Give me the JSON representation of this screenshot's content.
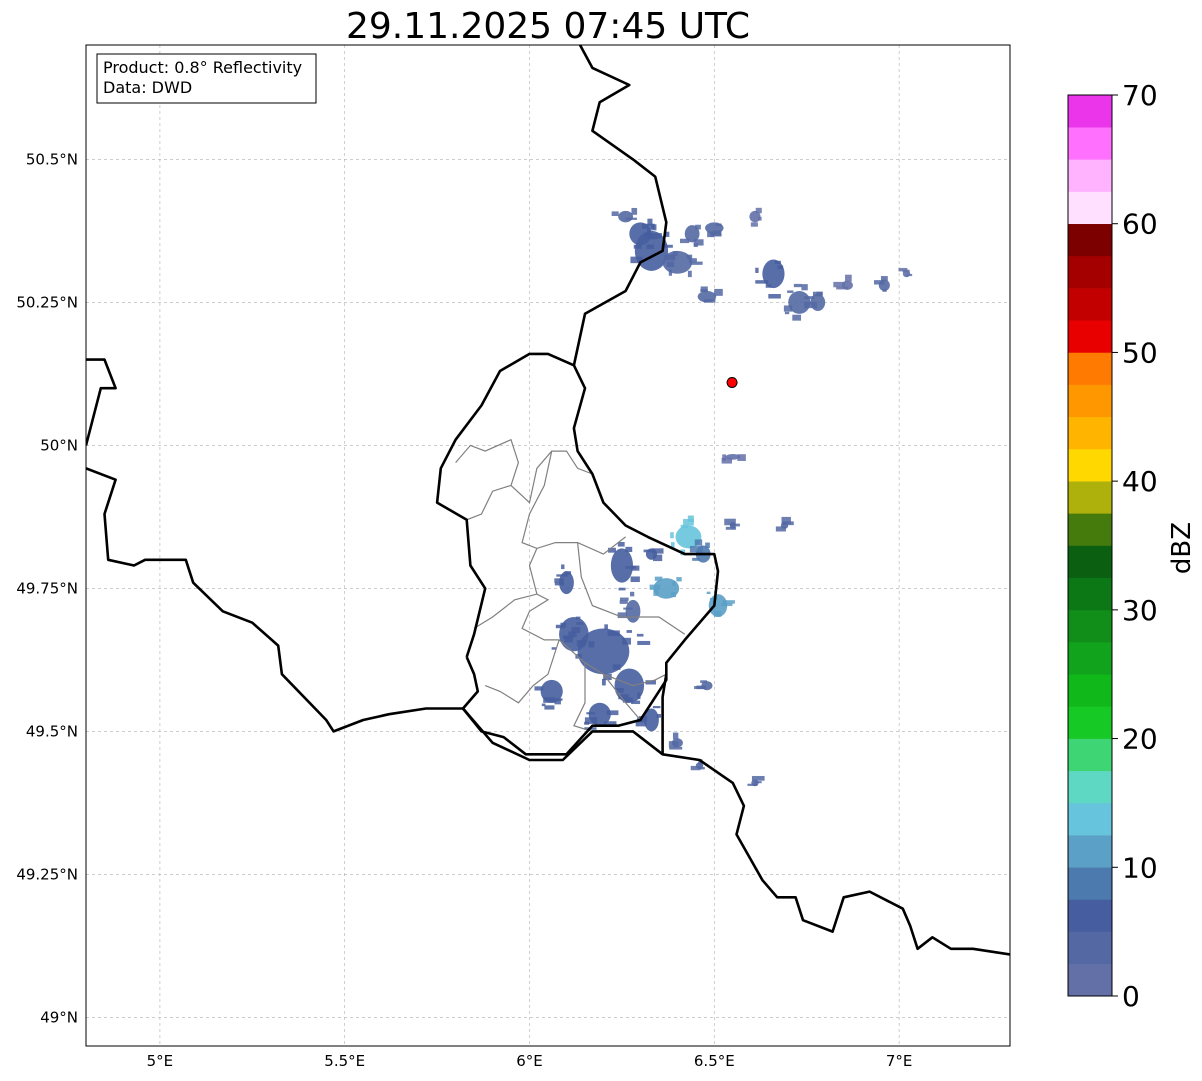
{
  "title": "29.11.2025 07:45 UTC",
  "info_box": {
    "product_line": "Product: 0.8° Reflectivity",
    "data_line": "Data: DWD"
  },
  "map": {
    "lon_range": [
      4.8,
      7.3
    ],
    "lat_range": [
      48.95,
      50.7
    ],
    "x_ticks": [
      {
        "value": 5.0,
        "label": "5°E"
      },
      {
        "value": 5.5,
        "label": "5.5°E"
      },
      {
        "value": 6.0,
        "label": "6°E"
      },
      {
        "value": 6.5,
        "label": "6.5°E"
      },
      {
        "value": 7.0,
        "label": "7°E"
      }
    ],
    "y_ticks": [
      {
        "value": 49.0,
        "label": "49°N"
      },
      {
        "value": 49.25,
        "label": "49.25°N"
      },
      {
        "value": 49.5,
        "label": "49.5°N"
      },
      {
        "value": 49.75,
        "label": "49.75°N"
      },
      {
        "value": 50.0,
        "label": "50°N"
      },
      {
        "value": 50.25,
        "label": "50.25°N"
      },
      {
        "value": 50.5,
        "label": "50.5°N"
      }
    ],
    "gridlines": true,
    "radar_site": {
      "lon": 6.548,
      "lat": 50.11,
      "color": "#ff0000"
    },
    "borders": [
      [
        [
          4.8,
          49.96
        ],
        [
          4.88,
          49.94
        ],
        [
          4.85,
          49.88
        ],
        [
          4.86,
          49.8
        ],
        [
          4.93,
          49.79
        ],
        [
          4.96,
          49.8
        ],
        [
          5.07,
          49.8
        ],
        [
          5.09,
          49.76
        ],
        [
          5.17,
          49.71
        ],
        [
          5.25,
          49.69
        ],
        [
          5.32,
          49.65
        ],
        [
          5.33,
          49.6
        ],
        [
          5.45,
          49.52
        ],
        [
          5.47,
          49.5
        ],
        [
          5.55,
          49.52
        ],
        [
          5.62,
          49.53
        ],
        [
          5.72,
          49.54
        ],
        [
          5.82,
          49.54
        ],
        [
          5.9,
          49.48
        ],
        [
          6.0,
          49.45
        ],
        [
          6.09,
          49.45
        ],
        [
          6.17,
          49.5
        ],
        [
          6.28,
          49.5
        ],
        [
          6.36,
          49.46
        ],
        [
          6.46,
          49.45
        ],
        [
          6.55,
          49.41
        ],
        [
          6.58,
          49.37
        ],
        [
          6.56,
          49.32
        ],
        [
          6.63,
          49.24
        ],
        [
          6.67,
          49.21
        ],
        [
          6.72,
          49.21
        ],
        [
          6.74,
          49.17
        ],
        [
          6.82,
          49.15
        ],
        [
          6.85,
          49.21
        ],
        [
          6.92,
          49.22
        ],
        [
          7.01,
          49.19
        ],
        [
          7.03,
          49.16
        ],
        [
          7.05,
          49.12
        ],
        [
          7.09,
          49.14
        ],
        [
          7.14,
          49.12
        ],
        [
          7.2,
          49.12
        ],
        [
          7.3,
          49.11
        ]
      ],
      [
        [
          5.83,
          49.63
        ],
        [
          5.85,
          49.67
        ],
        [
          5.88,
          49.75
        ],
        [
          5.84,
          49.79
        ],
        [
          5.83,
          49.87
        ],
        [
          5.75,
          49.9
        ],
        [
          5.76,
          49.96
        ],
        [
          5.8,
          50.01
        ],
        [
          5.87,
          50.07
        ],
        [
          5.92,
          50.13
        ],
        [
          6.0,
          50.16
        ],
        [
          6.05,
          50.16
        ],
        [
          6.12,
          50.14
        ],
        [
          6.15,
          50.1
        ],
        [
          6.12,
          50.03
        ],
        [
          6.13,
          49.99
        ],
        [
          6.17,
          49.95
        ],
        [
          6.2,
          49.9
        ],
        [
          6.26,
          49.86
        ],
        [
          6.32,
          49.84
        ],
        [
          6.42,
          49.81
        ],
        [
          6.5,
          49.81
        ],
        [
          6.51,
          49.78
        ],
        [
          6.5,
          49.72
        ],
        [
          6.42,
          49.66
        ],
        [
          6.37,
          49.62
        ],
        [
          6.37,
          49.59
        ],
        [
          6.35,
          49.57
        ],
        [
          6.3,
          49.52
        ],
        [
          6.24,
          49.51
        ],
        [
          6.17,
          49.51
        ],
        [
          6.1,
          49.46
        ],
        [
          6.05,
          49.46
        ],
        [
          5.99,
          49.46
        ],
        [
          5.93,
          49.49
        ],
        [
          5.87,
          49.5
        ],
        [
          5.82,
          49.54
        ],
        [
          5.86,
          49.57
        ],
        [
          5.85,
          49.6
        ],
        [
          5.83,
          49.63
        ]
      ],
      [
        [
          6.12,
          50.14
        ],
        [
          6.15,
          50.23
        ],
        [
          6.26,
          50.27
        ],
        [
          6.3,
          50.32
        ],
        [
          6.36,
          50.34
        ],
        [
          6.37,
          50.39
        ],
        [
          6.34,
          50.47
        ],
        [
          6.28,
          50.5
        ],
        [
          6.17,
          50.55
        ],
        [
          6.19,
          50.6
        ],
        [
          6.27,
          50.63
        ],
        [
          6.17,
          50.66
        ],
        [
          6.12,
          50.72
        ]
      ],
      [
        [
          4.8,
          50.15
        ],
        [
          4.85,
          50.15
        ],
        [
          4.88,
          50.1
        ],
        [
          4.84,
          50.1
        ],
        [
          4.82,
          50.05
        ],
        [
          4.8,
          50.0
        ]
      ],
      [
        [
          6.36,
          49.46
        ],
        [
          6.36,
          49.56
        ],
        [
          6.37,
          49.6
        ]
      ]
    ],
    "admin_lines": [
      [
        [
          5.83,
          49.87
        ],
        [
          5.87,
          49.88
        ],
        [
          5.9,
          49.92
        ],
        [
          5.95,
          49.93
        ],
        [
          5.97,
          49.97
        ],
        [
          5.95,
          50.01
        ],
        [
          5.88,
          49.99
        ],
        [
          5.84,
          50.0
        ],
        [
          5.8,
          49.97
        ]
      ],
      [
        [
          5.95,
          49.93
        ],
        [
          6.0,
          49.9
        ],
        [
          6.02,
          49.96
        ],
        [
          6.06,
          49.99
        ],
        [
          6.1,
          49.99
        ],
        [
          6.13,
          49.96
        ],
        [
          6.17,
          49.95
        ]
      ],
      [
        [
          6.06,
          49.99
        ],
        [
          6.04,
          49.93
        ],
        [
          6.0,
          49.88
        ],
        [
          5.98,
          49.83
        ],
        [
          6.02,
          49.82
        ],
        [
          6.07,
          49.83
        ],
        [
          6.13,
          49.83
        ],
        [
          6.2,
          49.81
        ],
        [
          6.26,
          49.84
        ]
      ],
      [
        [
          6.13,
          49.83
        ],
        [
          6.14,
          49.77
        ],
        [
          6.17,
          49.72
        ],
        [
          6.25,
          49.7
        ],
        [
          6.35,
          49.7
        ],
        [
          6.42,
          49.67
        ]
      ],
      [
        [
          5.85,
          49.68
        ],
        [
          5.9,
          49.7
        ],
        [
          5.96,
          49.73
        ],
        [
          6.02,
          49.74
        ],
        [
          6.05,
          49.73
        ],
        [
          6.0,
          49.71
        ],
        [
          5.98,
          49.68
        ],
        [
          6.04,
          49.66
        ],
        [
          6.08,
          49.66
        ],
        [
          6.15,
          49.62
        ],
        [
          6.2,
          49.6
        ],
        [
          6.28,
          49.58
        ],
        [
          6.34,
          49.59
        ],
        [
          6.37,
          49.6
        ]
      ],
      [
        [
          6.02,
          49.74
        ],
        [
          6.0,
          49.79
        ],
        [
          6.02,
          49.82
        ]
      ],
      [
        [
          6.08,
          49.66
        ],
        [
          6.05,
          49.6
        ],
        [
          6.01,
          49.58
        ],
        [
          5.97,
          49.55
        ],
        [
          5.92,
          49.57
        ],
        [
          5.88,
          49.58
        ]
      ],
      [
        [
          6.15,
          49.62
        ],
        [
          6.15,
          49.55
        ],
        [
          6.12,
          49.51
        ],
        [
          6.17,
          49.5
        ]
      ],
      [
        [
          6.2,
          49.6
        ],
        [
          6.26,
          49.55
        ],
        [
          6.3,
          49.52
        ]
      ]
    ],
    "precip_cells": [
      {
        "lon": 6.33,
        "lat": 50.34,
        "rx": 0.045,
        "ry": 0.035,
        "dbz": 6
      },
      {
        "lon": 6.3,
        "lat": 50.37,
        "rx": 0.03,
        "ry": 0.02,
        "dbz": 5
      },
      {
        "lon": 6.4,
        "lat": 50.32,
        "rx": 0.04,
        "ry": 0.02,
        "dbz": 4
      },
      {
        "lon": 6.26,
        "lat": 50.4,
        "rx": 0.02,
        "ry": 0.01,
        "dbz": 3
      },
      {
        "lon": 6.44,
        "lat": 50.37,
        "rx": 0.02,
        "ry": 0.015,
        "dbz": 3
      },
      {
        "lon": 6.5,
        "lat": 50.38,
        "rx": 0.025,
        "ry": 0.01,
        "dbz": 3
      },
      {
        "lon": 6.61,
        "lat": 50.4,
        "rx": 0.015,
        "ry": 0.01,
        "dbz": 2
      },
      {
        "lon": 6.66,
        "lat": 50.3,
        "rx": 0.03,
        "ry": 0.025,
        "dbz": 5
      },
      {
        "lon": 6.73,
        "lat": 50.25,
        "rx": 0.03,
        "ry": 0.02,
        "dbz": 4
      },
      {
        "lon": 6.78,
        "lat": 50.25,
        "rx": 0.02,
        "ry": 0.015,
        "dbz": 4
      },
      {
        "lon": 6.86,
        "lat": 50.28,
        "rx": 0.015,
        "ry": 0.008,
        "dbz": 2
      },
      {
        "lon": 6.96,
        "lat": 50.28,
        "rx": 0.015,
        "ry": 0.01,
        "dbz": 3
      },
      {
        "lon": 7.02,
        "lat": 50.3,
        "rx": 0.01,
        "ry": 0.006,
        "dbz": 2
      },
      {
        "lon": 6.48,
        "lat": 50.26,
        "rx": 0.025,
        "ry": 0.01,
        "dbz": 3
      },
      {
        "lon": 6.43,
        "lat": 49.84,
        "rx": 0.035,
        "ry": 0.02,
        "dbz": 14
      },
      {
        "lon": 6.47,
        "lat": 49.81,
        "rx": 0.02,
        "ry": 0.015,
        "dbz": 8
      },
      {
        "lon": 6.37,
        "lat": 49.75,
        "rx": 0.035,
        "ry": 0.018,
        "dbz": 12
      },
      {
        "lon": 6.51,
        "lat": 49.72,
        "rx": 0.025,
        "ry": 0.02,
        "dbz": 10
      },
      {
        "lon": 6.25,
        "lat": 49.79,
        "rx": 0.03,
        "ry": 0.03,
        "dbz": 6
      },
      {
        "lon": 6.33,
        "lat": 49.81,
        "rx": 0.015,
        "ry": 0.01,
        "dbz": 5
      },
      {
        "lon": 6.2,
        "lat": 49.64,
        "rx": 0.07,
        "ry": 0.04,
        "dbz": 7
      },
      {
        "lon": 6.12,
        "lat": 49.67,
        "rx": 0.04,
        "ry": 0.03,
        "dbz": 6
      },
      {
        "lon": 6.27,
        "lat": 49.58,
        "rx": 0.04,
        "ry": 0.03,
        "dbz": 6
      },
      {
        "lon": 6.06,
        "lat": 49.57,
        "rx": 0.03,
        "ry": 0.02,
        "dbz": 5
      },
      {
        "lon": 6.19,
        "lat": 49.53,
        "rx": 0.03,
        "ry": 0.02,
        "dbz": 5
      },
      {
        "lon": 6.33,
        "lat": 49.52,
        "rx": 0.02,
        "ry": 0.02,
        "dbz": 6
      },
      {
        "lon": 6.1,
        "lat": 49.76,
        "rx": 0.02,
        "ry": 0.02,
        "dbz": 5
      },
      {
        "lon": 6.28,
        "lat": 49.71,
        "rx": 0.02,
        "ry": 0.02,
        "dbz": 4
      },
      {
        "lon": 6.48,
        "lat": 49.58,
        "rx": 0.015,
        "ry": 0.008,
        "dbz": 4
      },
      {
        "lon": 6.4,
        "lat": 49.48,
        "rx": 0.015,
        "ry": 0.008,
        "dbz": 4
      },
      {
        "lon": 6.46,
        "lat": 49.44,
        "rx": 0.01,
        "ry": 0.006,
        "dbz": 3
      },
      {
        "lon": 6.61,
        "lat": 49.41,
        "rx": 0.01,
        "ry": 0.006,
        "dbz": 4
      },
      {
        "lon": 6.69,
        "lat": 49.86,
        "rx": 0.01,
        "ry": 0.006,
        "dbz": 3
      },
      {
        "lon": 6.55,
        "lat": 49.86,
        "rx": 0.008,
        "ry": 0.006,
        "dbz": 3
      },
      {
        "lon": 6.55,
        "lat": 49.98,
        "rx": 0.02,
        "ry": 0.005,
        "dbz": 2
      }
    ]
  },
  "colorbar": {
    "label": "dBZ",
    "ticks": [
      {
        "value": 0,
        "label": "0"
      },
      {
        "value": 10,
        "label": "10"
      },
      {
        "value": 20,
        "label": "20"
      },
      {
        "value": 30,
        "label": "30"
      },
      {
        "value": 40,
        "label": "40"
      },
      {
        "value": 50,
        "label": "50"
      },
      {
        "value": 60,
        "label": "60"
      },
      {
        "value": 70,
        "label": "70"
      }
    ],
    "colors": [
      "#6370a8",
      "#5469a3",
      "#465e9f",
      "#4c7aaf",
      "#5aa0c7",
      "#66c4dc",
      "#5fd8c3",
      "#3ed574",
      "#16c925",
      "#10b81a",
      "#10a31b",
      "#118d19",
      "#0c7715",
      "#0b5f10",
      "#457a0d",
      "#aeb10b",
      "#ffd800",
      "#ffb500",
      "#ff9800",
      "#ff7a00",
      "#e80000",
      "#c30000",
      "#a50000",
      "#7c0000",
      "#ffe0ff",
      "#ffb3ff",
      "#ff70ff",
      "#eb35eb"
    ]
  }
}
